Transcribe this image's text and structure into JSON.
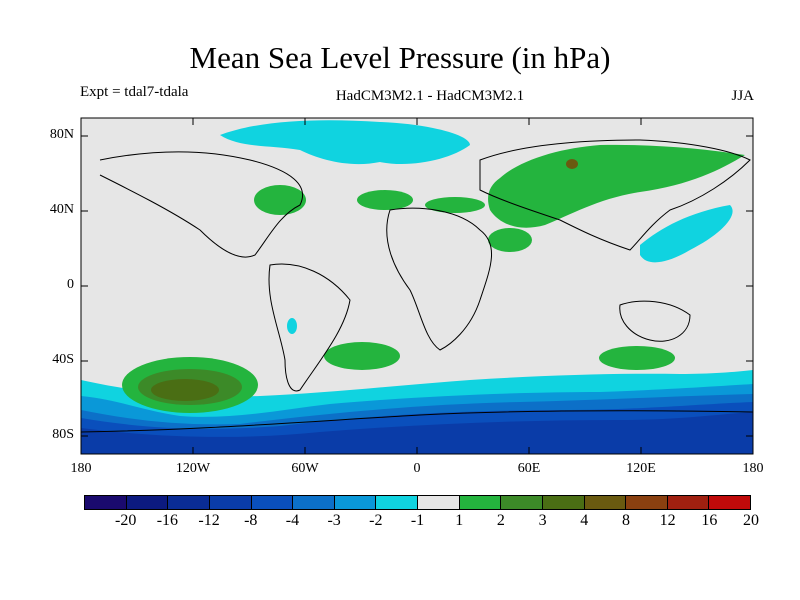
{
  "title": "Mean Sea Level Pressure (in hPa)",
  "experiment": "Expt = tdal7-tdala",
  "models": "HadCM3M2.1 - HadCM3M2.1",
  "season": "JJA",
  "lat_ticks": [
    "80N",
    "40N",
    "0",
    "40S",
    "80S"
  ],
  "lon_ticks": [
    "180",
    "120W",
    "60W",
    "0",
    "60E",
    "120E",
    "180"
  ],
  "colorbar": {
    "labels": [
      "-20",
      "-16",
      "-12",
      "-8",
      "-4",
      "-3",
      "-2",
      "-1",
      "1",
      "2",
      "3",
      "4",
      "8",
      "12",
      "16",
      "20"
    ],
    "colors": [
      "#1a0a6e",
      "#0c1a80",
      "#0a2c95",
      "#0a3ca8",
      "#0a4fbc",
      "#0c70c8",
      "#0a98d8",
      "#10d3e0",
      "#e6e6e6",
      "#24b43e",
      "#3c8a28",
      "#4a6e14",
      "#6a5a10",
      "#8a4010",
      "#a02010",
      "#c00a0a"
    ]
  },
  "map_colors": {
    "background": "#e6e6e6",
    "land_outline": "#000000"
  }
}
